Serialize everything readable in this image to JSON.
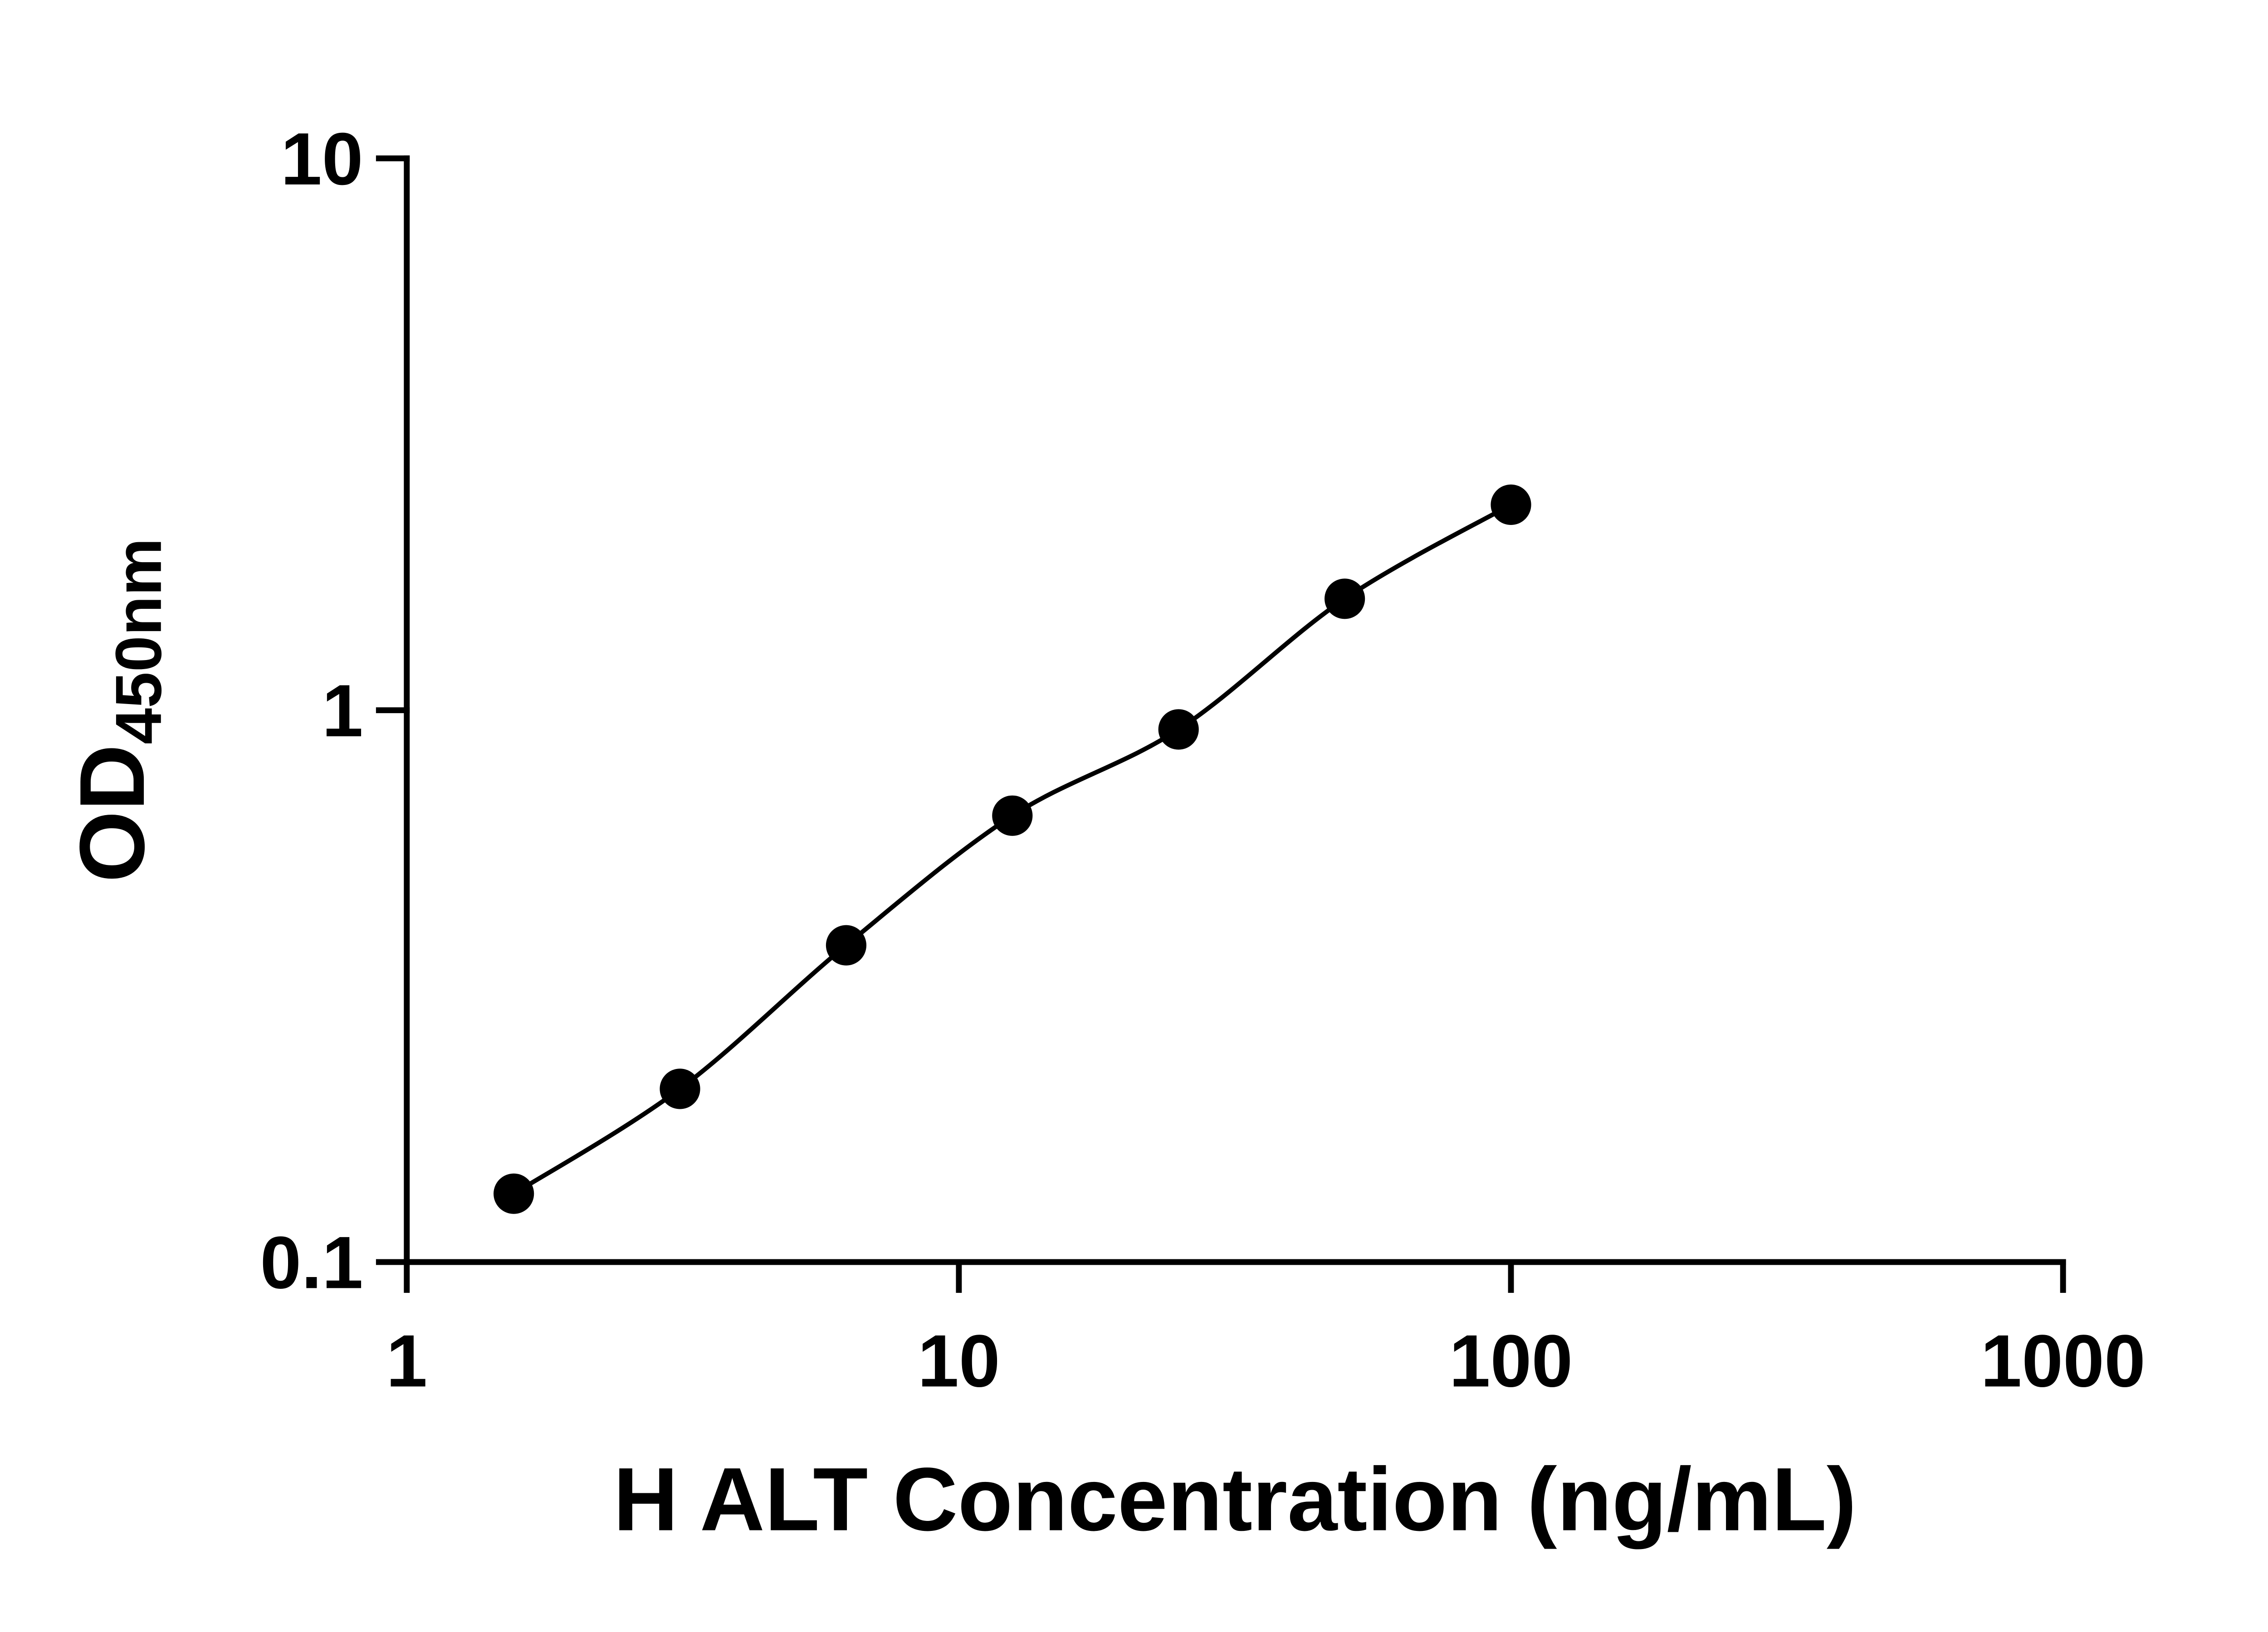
{
  "chart_data": {
    "type": "scatter",
    "mode": "line+markers",
    "title": "",
    "xlabel": "H ALT Concentration (ng/mL)",
    "ylabel": "OD",
    "ylabel_subscript": "450nm",
    "x_scale": "log",
    "y_scale": "log",
    "xlim": [
      1,
      1000
    ],
    "ylim": [
      0.1,
      10
    ],
    "x_ticks": [
      1,
      10,
      100,
      1000
    ],
    "x_tick_labels": [
      "1",
      "10",
      "100",
      "1000"
    ],
    "y_ticks": [
      0.1,
      1,
      10
    ],
    "y_tick_labels": [
      "0.1",
      "1",
      "10"
    ],
    "x": [
      1.5625,
      3.125,
      6.25,
      12.5,
      25,
      50,
      100
    ],
    "y": [
      0.133,
      0.206,
      0.375,
      0.644,
      0.923,
      1.592,
      2.357
    ],
    "grid": false,
    "legend": false,
    "line_color": "#000000",
    "marker_color": "#000000",
    "axis_color": "#000000",
    "background": "#ffffff"
  }
}
